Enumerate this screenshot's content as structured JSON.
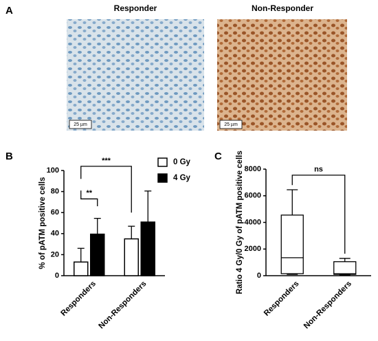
{
  "panel_labels": [
    "A",
    "B",
    "C"
  ],
  "images": [
    {
      "title": "Responder",
      "scale_bar": "25 µm"
    },
    {
      "title": "Non-Responder",
      "scale_bar": "25 µm"
    }
  ],
  "chart_data": [
    {
      "type": "bar",
      "ylabel": "% of pATM positive cells",
      "categories": [
        "Responders",
        "Non-Responders"
      ],
      "series": [
        {
          "name": "0 Gy",
          "color": "#ffffff",
          "values": [
            13,
            35
          ],
          "errors": [
            13,
            12
          ]
        },
        {
          "name": "4 Gy",
          "color": "#000000",
          "values": [
            39.5,
            51
          ],
          "errors": [
            15,
            29.5
          ]
        }
      ],
      "ylim": [
        0,
        100
      ],
      "yticks": [
        0,
        20,
        40,
        60,
        80,
        100
      ],
      "annotations": [
        {
          "text": "**"
        },
        {
          "text": "***"
        }
      ]
    },
    {
      "type": "box",
      "ylabel": "Ratio 4 Gy/0 Gy of pATM positive cells",
      "categories": [
        "Responders",
        "Non-Responders"
      ],
      "boxes": [
        {
          "min": 100,
          "q1": 150,
          "median": 1350,
          "q3": 4550,
          "max": 6450
        },
        {
          "min": 50,
          "q1": 100,
          "median": 150,
          "q3": 1050,
          "max": 1300
        }
      ],
      "color": "#000000",
      "ylim": [
        0,
        8000
      ],
      "yticks": [
        0,
        2000,
        4000,
        6000,
        8000
      ],
      "annotations": [
        {
          "text": "ns"
        }
      ]
    }
  ]
}
